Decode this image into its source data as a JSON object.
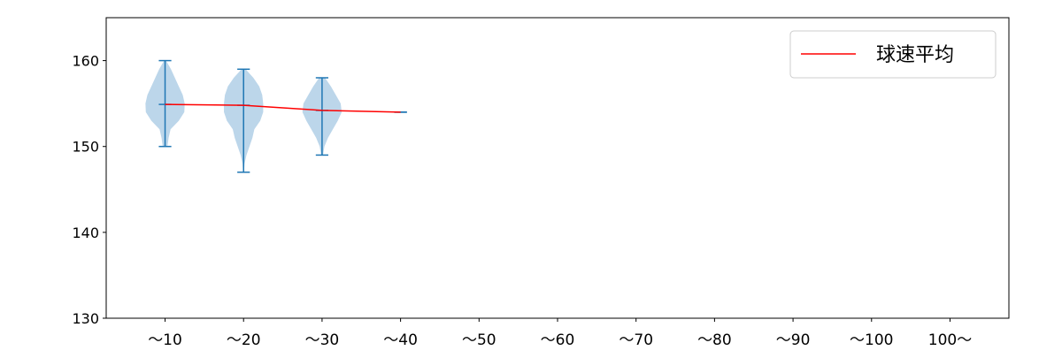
{
  "chart_data": {
    "type": "violin",
    "categories": [
      "~10",
      "~20",
      "~30",
      "~40",
      "~50",
      "~60",
      "~70",
      "~80",
      "~90",
      "~100",
      "100~"
    ],
    "ylim": [
      130,
      165
    ],
    "yticks": [
      130,
      140,
      150,
      160
    ],
    "grid": false,
    "legend": {
      "placement": "top-right",
      "entries": [
        "球速平均"
      ]
    },
    "colors": {
      "violin_fill": "#bcd6ea",
      "violin_lines": "#1f77b4",
      "mean_line": "#ff0000"
    },
    "violins": [
      {
        "category": "~10",
        "min": 150,
        "max": 160,
        "mean": 154.9,
        "profile": [
          [
            150,
            0.12
          ],
          [
            151,
            0.18
          ],
          [
            152,
            0.28
          ],
          [
            153,
            0.7
          ],
          [
            154,
            0.98
          ],
          [
            155,
            1.0
          ],
          [
            156,
            0.9
          ],
          [
            157,
            0.7
          ],
          [
            158,
            0.5
          ],
          [
            159,
            0.3
          ],
          [
            160,
            0.05
          ]
        ]
      },
      {
        "category": "~20",
        "min": 147,
        "max": 159,
        "mean": 154.8,
        "profile": [
          [
            147,
            0.02
          ],
          [
            148,
            0.05
          ],
          [
            149,
            0.15
          ],
          [
            150,
            0.3
          ],
          [
            151,
            0.45
          ],
          [
            152,
            0.55
          ],
          [
            153,
            0.85
          ],
          [
            154,
            1.0
          ],
          [
            155,
            1.0
          ],
          [
            156,
            0.95
          ],
          [
            157,
            0.8
          ],
          [
            158,
            0.5
          ],
          [
            159,
            0.1
          ]
        ]
      },
      {
        "category": "~30",
        "min": 149,
        "max": 158,
        "mean": 154.2,
        "profile": [
          [
            149,
            0.05
          ],
          [
            150,
            0.12
          ],
          [
            151,
            0.3
          ],
          [
            152,
            0.55
          ],
          [
            153,
            0.8
          ],
          [
            154,
            1.0
          ],
          [
            155,
            0.95
          ],
          [
            156,
            0.7
          ],
          [
            157,
            0.45
          ],
          [
            158,
            0.15
          ]
        ]
      },
      {
        "category": "~40",
        "min": 154,
        "max": 154,
        "mean": 154.0,
        "profile": []
      }
    ],
    "mean_series": {
      "name": "球速平均",
      "categories": [
        "~10",
        "~20",
        "~30",
        "~40"
      ],
      "values": [
        154.9,
        154.8,
        154.2,
        154.0
      ]
    }
  }
}
